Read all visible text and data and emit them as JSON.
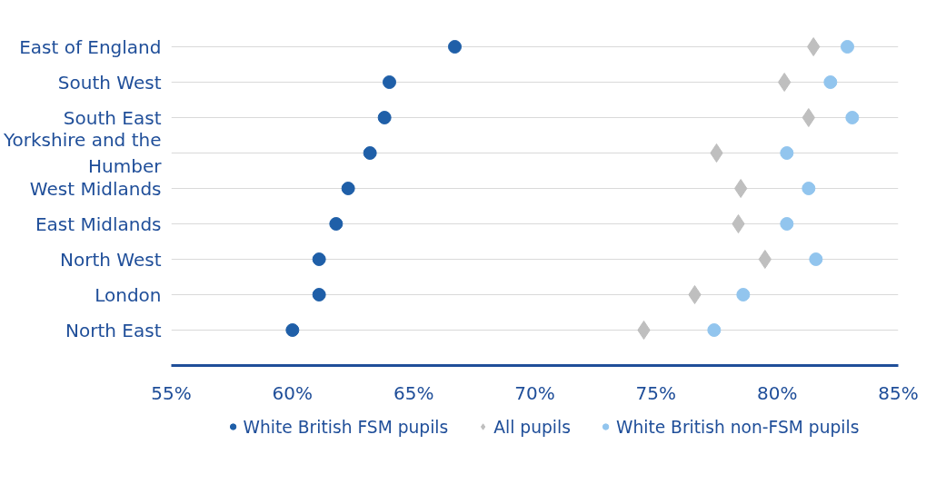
{
  "chart_data": {
    "type": "scatter",
    "orientation": "horizontal",
    "categories": [
      "East of England",
      "South West",
      "South East",
      "Yorkshire and the Humber",
      "West Midlands",
      "East Midlands",
      "North West",
      "London",
      "North East"
    ],
    "series": [
      {
        "name": "White British FSM pupils",
        "color": "#1f5fa8",
        "marker": "circle",
        "values": [
          66.7,
          64.0,
          63.8,
          63.2,
          62.3,
          61.8,
          61.1,
          61.1,
          60.0
        ]
      },
      {
        "name": "All pupils",
        "color": "#bfbfbf",
        "marker": "diamond",
        "values": [
          81.5,
          80.3,
          81.3,
          77.5,
          78.5,
          78.4,
          79.5,
          76.6,
          74.5
        ]
      },
      {
        "name": "White British non-FSM pupils",
        "color": "#92c5ee",
        "marker": "circle",
        "values": [
          82.9,
          82.2,
          83.1,
          80.4,
          81.3,
          80.4,
          81.6,
          78.6,
          77.4
        ]
      }
    ],
    "xlim": [
      55,
      85
    ],
    "xticks": [
      {
        "value": 55,
        "label": "55%"
      },
      {
        "value": 60,
        "label": "60%"
      },
      {
        "value": 65,
        "label": "65%"
      },
      {
        "value": 70,
        "label": "70%"
      },
      {
        "value": 75,
        "label": "75%"
      },
      {
        "value": 80,
        "label": "80%"
      },
      {
        "value": 85,
        "label": "85%"
      }
    ],
    "grid": "y",
    "legend": "bottom"
  }
}
